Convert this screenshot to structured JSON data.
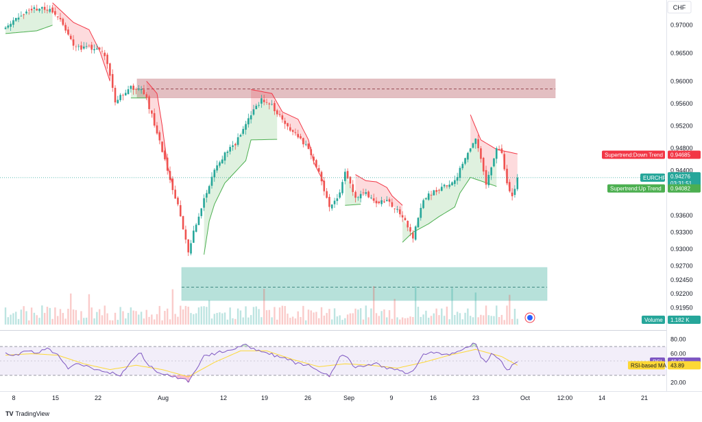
{
  "brand": {
    "logo": "TV",
    "name": "TradingView"
  },
  "currency": "CHF",
  "colors": {
    "up": "#26a69a",
    "down": "#ef5350",
    "st_up": "#4caf50",
    "st_down": "#f23645",
    "rsi": "#7e57c2",
    "rsi_ma": "#fdd835"
  },
  "chart_data": [
    {
      "type": "candlestick",
      "symbol": "EURCHF",
      "ylim": [
        0.9165,
        0.9745
      ],
      "price_ticks": [
        "0.97000",
        "0.96500",
        "0.96000",
        "0.95600",
        "0.95200",
        "0.94800",
        "0.94400",
        "0.93600",
        "0.93300",
        "0.93000",
        "0.92700",
        "0.92450",
        "0.92200",
        "0.91950"
      ],
      "date_ticks": [
        "8",
        "15",
        "22",
        "Aug",
        "12",
        "19",
        "26",
        "Sep",
        "9",
        "16",
        "23",
        "Oct",
        "12:00",
        "14",
        "21"
      ],
      "last_price": "0.94276",
      "countdown": "03:31:51",
      "supertrend_down": {
        "label": "Supertrend:Down Trend",
        "value": "0.94685"
      },
      "supertrend_up": {
        "label": "Supertrend:Up Trend",
        "value": "0.94082"
      },
      "volume": {
        "label": "Volume",
        "value": "1.182 K"
      },
      "zones": [
        {
          "name": "supply",
          "from": 0.957,
          "to": 0.9604,
          "mid": 0.9586
        },
        {
          "name": "demand",
          "from": 0.9208,
          "to": 0.9267,
          "mid": 0.9232
        }
      ],
      "close_anchors": [
        [
          0,
          0.9696
        ],
        [
          6,
          0.9718
        ],
        [
          12,
          0.973
        ],
        [
          16,
          0.9728
        ],
        [
          20,
          0.9718
        ],
        [
          26,
          0.9666
        ],
        [
          30,
          0.9658
        ],
        [
          34,
          0.966
        ],
        [
          38,
          0.9648
        ],
        [
          42,
          0.9566
        ],
        [
          46,
          0.9578
        ],
        [
          48,
          0.9588
        ],
        [
          52,
          0.9586
        ],
        [
          54,
          0.9568
        ],
        [
          58,
          0.951
        ],
        [
          62,
          0.9442
        ],
        [
          66,
          0.9376
        ],
        [
          70,
          0.9296
        ],
        [
          72,
          0.933
        ],
        [
          76,
          0.9388
        ],
        [
          80,
          0.944
        ],
        [
          84,
          0.947
        ],
        [
          88,
          0.9488
        ],
        [
          92,
          0.9525
        ],
        [
          94,
          0.954
        ],
        [
          98,
          0.9568
        ],
        [
          102,
          0.9556
        ],
        [
          104,
          0.9542
        ],
        [
          108,
          0.952
        ],
        [
          112,
          0.95
        ],
        [
          116,
          0.948
        ],
        [
          120,
          0.9438
        ],
        [
          124,
          0.9375
        ],
        [
          128,
          0.94
        ],
        [
          130,
          0.9436
        ],
        [
          134,
          0.9392
        ],
        [
          138,
          0.9398
        ],
        [
          142,
          0.938
        ],
        [
          146,
          0.9388
        ],
        [
          150,
          0.937
        ],
        [
          154,
          0.934
        ],
        [
          156,
          0.9322
        ],
        [
          160,
          0.939
        ],
        [
          164,
          0.9402
        ],
        [
          168,
          0.9412
        ],
        [
          172,
          0.942
        ],
        [
          176,
          0.9462
        ],
        [
          180,
          0.95
        ],
        [
          182,
          0.9462
        ],
        [
          184,
          0.9412
        ],
        [
          186,
          0.9448
        ],
        [
          188,
          0.9478
        ],
        [
          190,
          0.9474
        ],
        [
          192,
          0.9418
        ],
        [
          194,
          0.9392
        ],
        [
          196,
          0.9428
        ]
      ],
      "supertrend_down_segments": [
        [
          [
            18,
            0.974
          ],
          [
            26,
            0.9705
          ],
          [
            32,
            0.9692
          ],
          [
            36,
            0.9655
          ],
          [
            40,
            0.96
          ]
        ],
        [
          [
            54,
            0.96
          ],
          [
            58,
            0.9578
          ],
          [
            60,
            0.952
          ],
          [
            62,
            0.945
          ],
          [
            64,
            0.9415
          ]
        ],
        [
          [
            94,
            0.9585
          ],
          [
            102,
            0.9578
          ],
          [
            106,
            0.9545
          ],
          [
            112,
            0.9532
          ],
          [
            116,
            0.9495
          ],
          [
            118,
            0.9455
          ],
          [
            122,
            0.9418
          ]
        ],
        [
          [
            134,
            0.9433
          ],
          [
            138,
            0.9422
          ],
          [
            142,
            0.942
          ],
          [
            146,
            0.941
          ],
          [
            148,
            0.9395
          ],
          [
            152,
            0.9378
          ]
        ],
        [
          [
            178,
            0.954
          ],
          [
            182,
            0.9495
          ],
          [
            188,
            0.9478
          ],
          [
            196,
            0.947
          ]
        ]
      ],
      "supertrend_up_segments": [
        [
          [
            0,
            0.9685
          ],
          [
            12,
            0.969
          ],
          [
            18,
            0.97
          ]
        ],
        [
          [
            48,
            0.957
          ],
          [
            54,
            0.957
          ]
        ],
        [
          [
            76,
            0.929
          ],
          [
            78,
            0.935
          ],
          [
            80,
            0.938
          ],
          [
            84,
            0.9418
          ],
          [
            92,
            0.9458
          ],
          [
            94,
            0.9495
          ],
          [
            104,
            0.9496
          ]
        ],
        [
          [
            130,
            0.9378
          ],
          [
            136,
            0.938
          ]
        ],
        [
          [
            152,
            0.9312
          ],
          [
            156,
            0.933
          ],
          [
            162,
            0.9345
          ],
          [
            166,
            0.9358
          ],
          [
            172,
            0.9375
          ],
          [
            174,
            0.94
          ],
          [
            178,
            0.9428
          ],
          [
            188,
            0.9412
          ]
        ]
      ]
    },
    {
      "type": "line",
      "name": "RSI",
      "ylim": [
        10,
        90
      ],
      "bands": [
        70,
        30
      ],
      "ticks": [
        "80.00",
        "60.00",
        "20.00"
      ],
      "rsi": {
        "label": "RSI",
        "value": "49.07"
      },
      "rsi_ma": {
        "label": "RSI-based MA",
        "value": "43.89"
      },
      "rsi_anchors": [
        [
          0,
          60
        ],
        [
          4,
          58
        ],
        [
          8,
          65
        ],
        [
          12,
          60
        ],
        [
          16,
          68
        ],
        [
          20,
          58
        ],
        [
          24,
          40
        ],
        [
          28,
          46
        ],
        [
          32,
          42
        ],
        [
          36,
          36
        ],
        [
          40,
          34
        ],
        [
          44,
          30
        ],
        [
          46,
          40
        ],
        [
          50,
          56
        ],
        [
          52,
          62
        ],
        [
          54,
          46
        ],
        [
          58,
          36
        ],
        [
          62,
          30
        ],
        [
          66,
          26
        ],
        [
          70,
          22
        ],
        [
          72,
          34
        ],
        [
          76,
          56
        ],
        [
          80,
          60
        ],
        [
          84,
          64
        ],
        [
          88,
          68
        ],
        [
          92,
          72
        ],
        [
          96,
          66
        ],
        [
          100,
          62
        ],
        [
          104,
          56
        ],
        [
          108,
          52
        ],
        [
          112,
          46
        ],
        [
          116,
          44
        ],
        [
          120,
          36
        ],
        [
          124,
          30
        ],
        [
          128,
          54
        ],
        [
          130,
          58
        ],
        [
          134,
          40
        ],
        [
          138,
          44
        ],
        [
          142,
          46
        ],
        [
          146,
          40
        ],
        [
          150,
          38
        ],
        [
          154,
          32
        ],
        [
          156,
          36
        ],
        [
          160,
          60
        ],
        [
          164,
          62
        ],
        [
          168,
          58
        ],
        [
          172,
          60
        ],
        [
          176,
          70
        ],
        [
          180,
          74
        ],
        [
          182,
          56
        ],
        [
          184,
          48
        ],
        [
          186,
          60
        ],
        [
          188,
          54
        ],
        [
          190,
          50
        ],
        [
          192,
          36
        ],
        [
          194,
          44
        ],
        [
          196,
          50
        ]
      ],
      "rsi_ma_anchors": [
        [
          0,
          58
        ],
        [
          10,
          60
        ],
        [
          20,
          58
        ],
        [
          30,
          46
        ],
        [
          40,
          38
        ],
        [
          50,
          44
        ],
        [
          60,
          38
        ],
        [
          70,
          28
        ],
        [
          80,
          48
        ],
        [
          90,
          64
        ],
        [
          100,
          64
        ],
        [
          110,
          52
        ],
        [
          120,
          42
        ],
        [
          130,
          46
        ],
        [
          140,
          44
        ],
        [
          150,
          40
        ],
        [
          160,
          48
        ],
        [
          170,
          58
        ],
        [
          180,
          66
        ],
        [
          190,
          56
        ],
        [
          196,
          44
        ]
      ]
    }
  ]
}
